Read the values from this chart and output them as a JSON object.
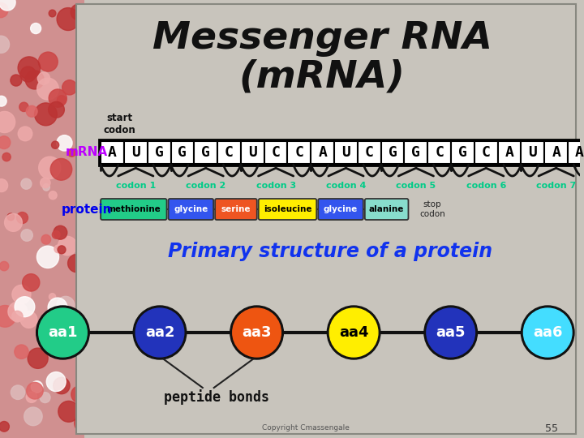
{
  "title_line1": "Messenger RNA",
  "title_line2": "(mRNA)",
  "slide_bg": "#c8c4bc",
  "left_bg": "#c07070",
  "mrna_label": "mRNA",
  "mrna_label_color": "#bb00ff",
  "protein_label": "protein",
  "protein_label_color": "#0000ee",
  "start_codon_text": "start\ncodon",
  "nucleotides": [
    "A",
    "U",
    "G",
    "G",
    "G",
    "C",
    "U",
    "C",
    "C",
    "A",
    "U",
    "C",
    "G",
    "G",
    "C",
    "G",
    "C",
    "A",
    "U",
    "A",
    "A"
  ],
  "codon_labels": [
    "codon 1",
    "codon 2",
    "codon 3",
    "codon 4",
    "codon 5",
    "codon 6",
    "codon 7"
  ],
  "codon_label_color": "#00cc88",
  "amino_acids": [
    {
      "name": "methionine",
      "color": "#22cc88",
      "text_color": "#000000"
    },
    {
      "name": "glycine",
      "color": "#3355ee",
      "text_color": "#ffffff"
    },
    {
      "name": "serine",
      "color": "#ee5522",
      "text_color": "#ffffff"
    },
    {
      "name": "isoleucine",
      "color": "#ffee00",
      "text_color": "#000000"
    },
    {
      "name": "glycine",
      "color": "#3355ee",
      "text_color": "#ffffff"
    },
    {
      "name": "alanine",
      "color": "#88ddcc",
      "text_color": "#000000"
    }
  ],
  "stop_codon_text": "stop\ncodon",
  "primary_structure_text": "Primary structure of a protein",
  "primary_structure_color": "#1133ee",
  "aa_circles": [
    {
      "label": "aa1",
      "color": "#22cc88"
    },
    {
      "label": "aa2",
      "color": "#2233bb"
    },
    {
      "label": "aa3",
      "color": "#ee5511"
    },
    {
      "label": "aa4",
      "color": "#ffee00"
    },
    {
      "label": "aa5",
      "color": "#2233bb"
    },
    {
      "label": "aa6",
      "color": "#44ddff"
    }
  ],
  "peptide_bonds_text": "peptide bonds",
  "copyright_text": "Copyright Cmassengale",
  "page_number": "55",
  "nuc_box_color": "#ffffff",
  "nuc_box_border": "#000000",
  "nuc_text_color": "#000000",
  "aa_circle_text_color": "#ffffff",
  "aa4_text_color": "#000000"
}
